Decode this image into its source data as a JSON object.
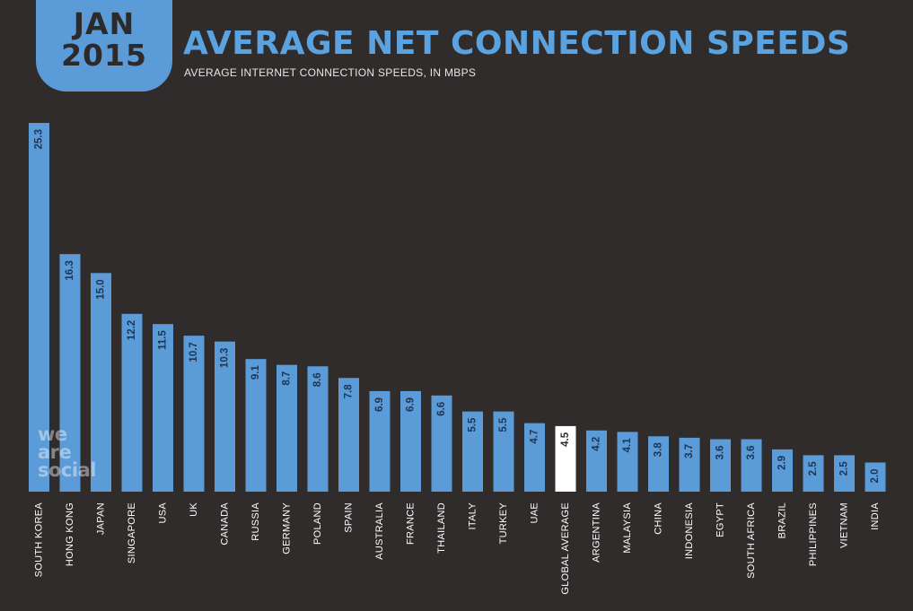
{
  "header": {
    "date_line1": "JAN",
    "date_line2": "2015",
    "title": "AVERAGE NET CONNECTION SPEEDS",
    "subtitle": "AVERAGE INTERNET CONNECTION SPEEDS, IN MBPS"
  },
  "watermark": {
    "line1": "we",
    "line2": "are",
    "line3": "social"
  },
  "colors": {
    "background": "#2f2c2b",
    "bar": "#5b9bd8",
    "highlight_bar": "#ffffff",
    "title": "#5ba3e0"
  },
  "chart_data": {
    "type": "bar",
    "title": "AVERAGE NET CONNECTION SPEEDS",
    "subtitle": "AVERAGE INTERNET CONNECTION SPEEDS, IN MBPS",
    "xlabel": "",
    "ylabel": "",
    "ylim": [
      0,
      25.3
    ],
    "grid": false,
    "categories": [
      "SOUTH KOREA",
      "HONG KONG",
      "JAPAN",
      "SINGAPORE",
      "USA",
      "UK",
      "CANADA",
      "RUSSIA",
      "GERMANY",
      "POLAND",
      "SPAIN",
      "AUSTRALIA",
      "FRANCE",
      "THAILAND",
      "ITALY",
      "TURKEY",
      "UAE",
      "GLOBAL AVERAGE",
      "ARGENTINA",
      "MALAYSIA",
      "CHINA",
      "INDONESIA",
      "EGYPT",
      "SOUTH AFRICA",
      "BRAZIL",
      "PHILIPPINES",
      "VIETNAM",
      "INDIA"
    ],
    "values": [
      25.3,
      16.3,
      15.0,
      12.2,
      11.5,
      10.7,
      10.3,
      9.1,
      8.7,
      8.6,
      7.8,
      6.9,
      6.9,
      6.6,
      5.5,
      5.5,
      4.7,
      4.5,
      4.2,
      4.1,
      3.8,
      3.7,
      3.6,
      3.6,
      2.9,
      2.5,
      2.5,
      2.0
    ],
    "value_labels": [
      "25.3",
      "16.3",
      "15.0",
      "12.2",
      "11.5",
      "10.7",
      "10.3",
      "9.1",
      "8.7",
      "8.6",
      "7.8",
      "6.9",
      "6.9",
      "6.6",
      "5.5",
      "5.5",
      "4.7",
      "4.5",
      "4.2",
      "4.1",
      "3.8",
      "3.7",
      "3.6",
      "3.6",
      "2.9",
      "2.5",
      "2.5",
      "2.0"
    ],
    "highlight_category": "GLOBAL AVERAGE"
  }
}
